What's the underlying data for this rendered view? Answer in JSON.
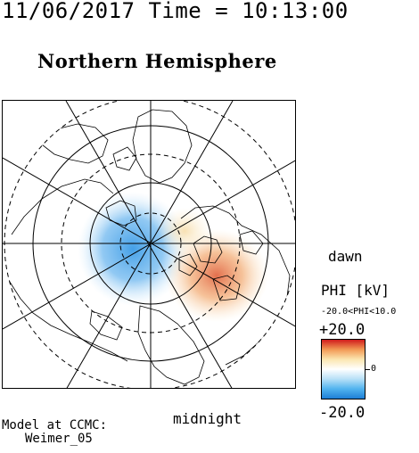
{
  "header": {
    "date_time": "11/06/2017 Time = 10:13:00",
    "hemisphere": "Northern Hemisphere"
  },
  "map": {
    "local_time_labels": {
      "dawn": "dawn",
      "midnight": "midnight"
    },
    "gridlines": {
      "latitude_circles": "dashed and solid",
      "meridians_deg": 30
    },
    "colors": {
      "negative": "#3b9be6",
      "neutral": "#ffffff",
      "positive": "#e0603a",
      "outline": "#000000"
    }
  },
  "legend": {
    "title": "PHI [kV]",
    "range_text": "-20.0<PHI<10.0",
    "max_label": "+20.0",
    "zero_label": "0",
    "min_label": "-20.0",
    "gradient_stops": [
      "#d01c1c",
      "#f29a55",
      "#fbe6b0",
      "#ffffff",
      "#b8e0f7",
      "#52b4ef",
      "#1e7fd6"
    ]
  },
  "credit": {
    "line1": "Model at CCMC:",
    "line2": "Weimer_05"
  }
}
